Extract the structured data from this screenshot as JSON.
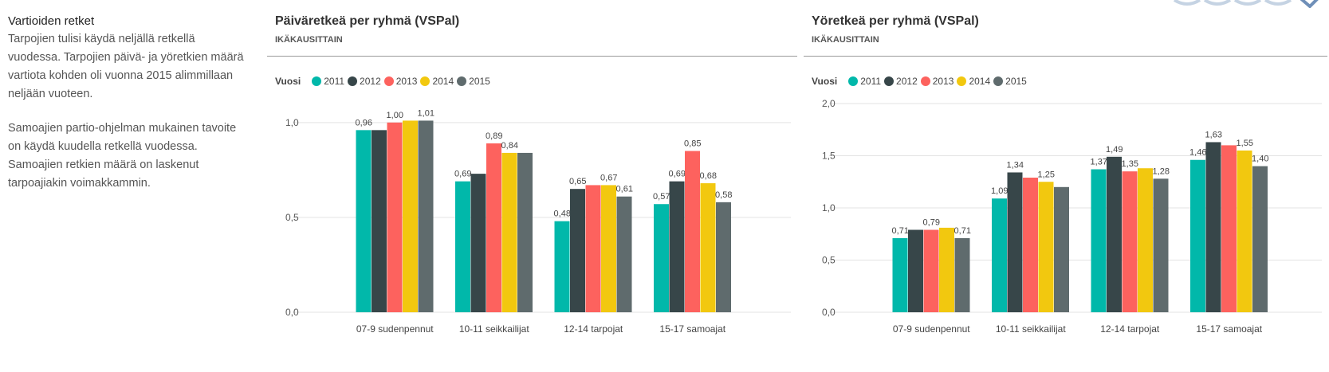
{
  "side_panel": {
    "heading": "Vartioiden retket",
    "paragraphs": [
      "Tarpojien tulisi käydä neljällä retkellä vuodessa. Tarpojien päivä- ja yöretkien määrä vartiota kohden oli vuonna 2015 alimmillaan neljään vuoteen.",
      "Samoajien partio-ohjelman mukainen tavoite on käydä kuudella retkellä vuodessa. Samoajien retkien määrä on laskenut tarpoajiakin voimakkammin."
    ]
  },
  "colors": {
    "2011": "#01b8aa",
    "2012": "#374649",
    "2013": "#fd625e",
    "2014": "#f2c80f",
    "2015": "#5f6b6d"
  },
  "chart_data": [
    {
      "type": "bar",
      "title": "Päiväretkeä per ryhmä (VSPal)",
      "subtitle": "IKÄKAUSITTAIN",
      "legend_title": "Vuosi",
      "legend_position": "top-left",
      "categories": [
        "07-9 sudenpennut",
        "10-11 seikkailijat",
        "12-14 tarpojat",
        "15-17 samoajat"
      ],
      "yticks": [
        "0,0",
        "0,5",
        "1,0"
      ],
      "ylim": [
        0,
        1.1
      ],
      "series": [
        {
          "name": "2011",
          "values": [
            0.96,
            0.69,
            0.48,
            0.57
          ]
        },
        {
          "name": "2012",
          "values": [
            0.96,
            0.73,
            0.65,
            0.69
          ]
        },
        {
          "name": "2013",
          "values": [
            1.0,
            0.89,
            0.67,
            0.85
          ]
        },
        {
          "name": "2014",
          "values": [
            1.01,
            0.84,
            0.67,
            0.68
          ]
        },
        {
          "name": "2015",
          "values": [
            1.01,
            0.84,
            0.61,
            0.58
          ]
        }
      ],
      "labels": [
        [
          "0,96",
          "",
          "1,00",
          "",
          "1,01"
        ],
        [
          "0,69",
          "",
          "0,89",
          "0,84",
          ""
        ],
        [
          "0,48",
          "0,65",
          "",
          "0,67",
          "0,61"
        ],
        [
          "0,57",
          "0,69",
          "0,85",
          "0,68",
          "0,58"
        ]
      ]
    },
    {
      "type": "bar",
      "title": "Yöretkeä per ryhmä (VSPal)",
      "subtitle": "IKÄKAUSITTAIN",
      "legend_title": "Vuosi",
      "legend_position": "top-left",
      "categories": [
        "07-9 sudenpennut",
        "10-11 seikkailijat",
        "12-14 tarpojat",
        "15-17 samoajat"
      ],
      "yticks": [
        "0,0",
        "0,5",
        "1,0",
        "1,5",
        "2,0"
      ],
      "ylim": [
        0,
        2.0
      ],
      "series": [
        {
          "name": "2011",
          "values": [
            0.71,
            1.09,
            1.37,
            1.46
          ]
        },
        {
          "name": "2012",
          "values": [
            0.79,
            1.34,
            1.49,
            1.63
          ]
        },
        {
          "name": "2013",
          "values": [
            0.79,
            1.29,
            1.35,
            1.6
          ]
        },
        {
          "name": "2014",
          "values": [
            0.81,
            1.25,
            1.38,
            1.55
          ]
        },
        {
          "name": "2015",
          "values": [
            0.71,
            1.2,
            1.28,
            1.4
          ]
        }
      ],
      "labels": [
        [
          "0,71",
          "",
          "0,79",
          "",
          "0,71"
        ],
        [
          "1,09",
          "1,34",
          "",
          "1,25",
          ""
        ],
        [
          "1,37",
          "1,49",
          "1,35",
          "",
          "1,28"
        ],
        [
          "1,46",
          "1,63",
          "",
          "1,55",
          "1,40"
        ]
      ]
    }
  ]
}
